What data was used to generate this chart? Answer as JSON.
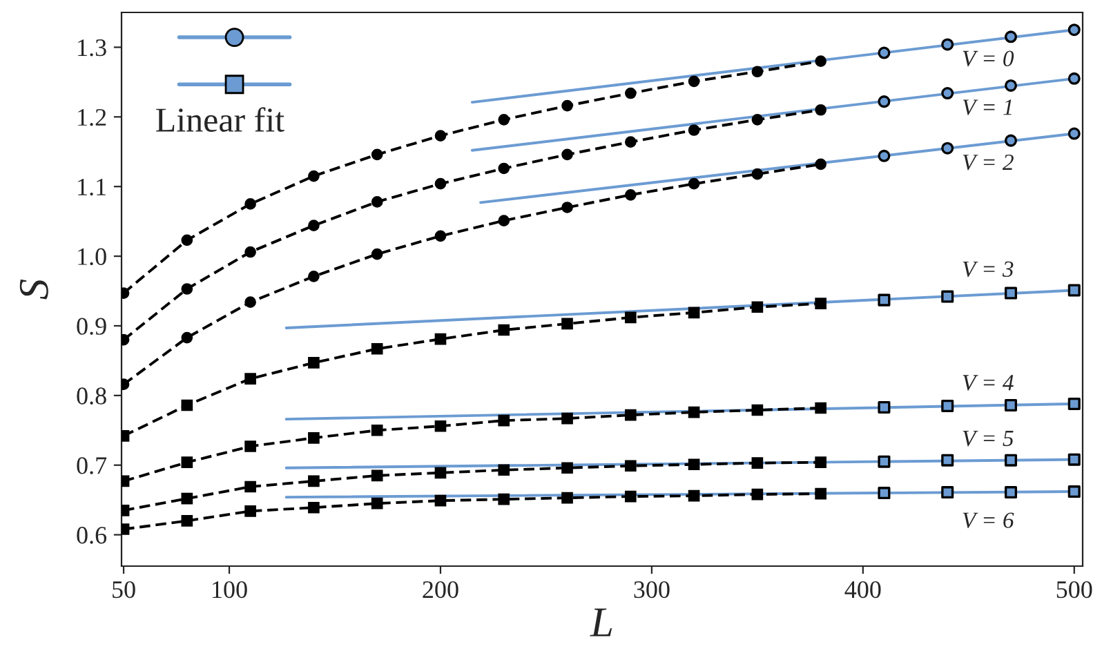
{
  "chart_data": {
    "type": "line",
    "xlabel": "L",
    "ylabel": "S",
    "xlim": [
      49,
      504
    ],
    "ylim": [
      0.555,
      1.35
    ],
    "xticks": [
      50,
      100,
      200,
      300,
      400,
      500
    ],
    "yticks": [
      0.6,
      0.7,
      0.8,
      0.9,
      {
        "value": 1.0,
        "label": "1.0"
      },
      1.1,
      1.2,
      1.3
    ],
    "grid": false,
    "annotations": [
      "Linear fit",
      "V = 0",
      "V = 1",
      "V = 2",
      "V = 3",
      "V = 4",
      "V = 5",
      "V = 6"
    ],
    "series": [
      {
        "color": "#000000",
        "marker": "circle",
        "line_style": "dashed",
        "x": [
          50,
          80,
          110,
          140,
          170,
          200,
          230,
          260,
          290,
          320,
          350,
          380
        ],
        "values": [
          0.947,
          1.023,
          1.075,
          1.115,
          1.146,
          1.173,
          1.196,
          1.216,
          1.234,
          1.251,
          1.265,
          1.28
        ]
      },
      {
        "color": "#000000",
        "marker": "circle",
        "line_style": "dashed",
        "x": [
          50,
          80,
          110,
          140,
          170,
          200,
          230,
          260,
          290,
          320,
          350,
          380
        ],
        "values": [
          0.88,
          0.953,
          1.006,
          1.044,
          1.078,
          1.104,
          1.126,
          1.146,
          1.164,
          1.181,
          1.196,
          1.21
        ]
      },
      {
        "color": "#000000",
        "marker": "circle",
        "line_style": "dashed",
        "x": [
          50,
          80,
          110,
          140,
          170,
          200,
          230,
          260,
          290,
          320,
          350,
          380
        ],
        "values": [
          0.816,
          0.883,
          0.934,
          0.971,
          1.003,
          1.029,
          1.051,
          1.07,
          1.088,
          1.104,
          1.118,
          1.132
        ]
      },
      {
        "color": "#000000",
        "marker": "square",
        "line_style": "dashed",
        "x": [
          50,
          80,
          110,
          140,
          170,
          200,
          230,
          260,
          290,
          320,
          350,
          380
        ],
        "values": [
          0.742,
          0.786,
          0.824,
          0.847,
          0.867,
          0.881,
          0.894,
          0.903,
          0.912,
          0.919,
          0.927,
          0.932
        ]
      },
      {
        "color": "#000000",
        "marker": "square",
        "line_style": "dashed",
        "x": [
          50,
          80,
          110,
          140,
          170,
          200,
          230,
          260,
          290,
          320,
          350,
          380
        ],
        "values": [
          0.677,
          0.704,
          0.727,
          0.739,
          0.75,
          0.756,
          0.764,
          0.767,
          0.772,
          0.776,
          0.779,
          0.782
        ]
      },
      {
        "color": "#000000",
        "marker": "square",
        "line_style": "dashed",
        "x": [
          50,
          80,
          110,
          140,
          170,
          200,
          230,
          260,
          290,
          320,
          350,
          380
        ],
        "values": [
          0.635,
          0.652,
          0.669,
          0.677,
          0.685,
          0.689,
          0.693,
          0.696,
          0.699,
          0.701,
          0.703,
          0.704
        ]
      },
      {
        "color": "#000000",
        "marker": "square",
        "line_style": "dashed",
        "x": [
          50,
          80,
          110,
          140,
          170,
          200,
          230,
          260,
          290,
          320,
          350,
          380
        ],
        "values": [
          0.608,
          0.62,
          0.634,
          0.639,
          0.645,
          0.649,
          0.651,
          0.653,
          0.655,
          0.656,
          0.658,
          0.659
        ]
      },
      {
        "color": "#6b9bd2",
        "marker": "none",
        "line_style": "solid",
        "x": [
          215,
          500
        ],
        "values": [
          1.221,
          1.325
        ]
      },
      {
        "color": "#6b9bd2",
        "marker": "none",
        "line_style": "solid",
        "x": [
          215,
          500
        ],
        "values": [
          1.152,
          1.255
        ]
      },
      {
        "color": "#6b9bd2",
        "marker": "none",
        "line_style": "solid",
        "x": [
          219,
          500
        ],
        "values": [
          1.077,
          1.176
        ]
      },
      {
        "color": "#6b9bd2",
        "marker": "none",
        "line_style": "solid",
        "x": [
          127,
          500
        ],
        "values": [
          0.897,
          0.951
        ]
      },
      {
        "color": "#6b9bd2",
        "marker": "none",
        "line_style": "solid",
        "x": [
          127,
          500
        ],
        "values": [
          0.766,
          0.788
        ]
      },
      {
        "color": "#6b9bd2",
        "marker": "none",
        "line_style": "solid",
        "x": [
          127,
          500
        ],
        "values": [
          0.696,
          0.708
        ]
      },
      {
        "color": "#6b9bd2",
        "marker": "none",
        "line_style": "solid",
        "x": [
          127,
          500
        ],
        "values": [
          0.654,
          0.662
        ]
      },
      {
        "type": "scatter",
        "color": "#6b9bd2",
        "marker": "circle",
        "x": [
          410,
          440,
          470,
          500
        ],
        "values": [
          1.292,
          1.304,
          1.315,
          1.325
        ]
      },
      {
        "type": "scatter",
        "color": "#6b9bd2",
        "marker": "circle",
        "x": [
          410,
          440,
          470,
          500
        ],
        "values": [
          1.222,
          1.234,
          1.245,
          1.255
        ]
      },
      {
        "type": "scatter",
        "color": "#6b9bd2",
        "marker": "circle",
        "x": [
          410,
          440,
          470,
          500
        ],
        "values": [
          1.144,
          1.155,
          1.166,
          1.176
        ]
      },
      {
        "type": "scatter",
        "color": "#6b9bd2",
        "marker": "square",
        "x": [
          410,
          440,
          470,
          500
        ],
        "values": [
          0.937,
          0.942,
          0.947,
          0.951
        ]
      },
      {
        "type": "scatter",
        "color": "#6b9bd2",
        "marker": "square",
        "x": [
          410,
          440,
          470,
          500
        ],
        "values": [
          0.783,
          0.785,
          0.786,
          0.788
        ]
      },
      {
        "type": "scatter",
        "color": "#6b9bd2",
        "marker": "square",
        "x": [
          410,
          440,
          470,
          500
        ],
        "values": [
          0.705,
          0.707,
          0.707,
          0.708
        ]
      },
      {
        "type": "scatter",
        "color": "#6b9bd2",
        "marker": "square",
        "x": [
          410,
          440,
          470,
          500
        ],
        "values": [
          0.66,
          0.661,
          0.661,
          0.662
        ]
      }
    ]
  }
}
